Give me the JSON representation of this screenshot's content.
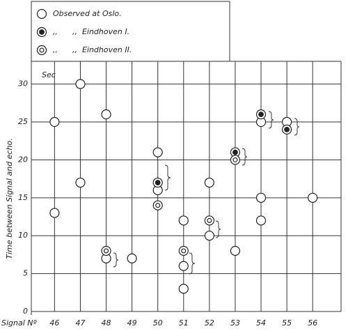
{
  "chart_data": {
    "type": "scatter",
    "y_label": "Time between Signal and echo.",
    "y_unit": "Sec",
    "x_label": "Signal Nº",
    "xlim": [
      45.1,
      57.1
    ],
    "ylim": [
      0,
      33
    ],
    "xticks": [
      46,
      47,
      48,
      49,
      50,
      51,
      52,
      53,
      54,
      55,
      56
    ],
    "yticks": [
      0,
      5,
      10,
      15,
      20,
      25,
      30
    ],
    "grid": true,
    "series": [
      {
        "name": "Observed at Oslo.",
        "marker": "open",
        "color": "#222",
        "x": [
          46,
          46,
          47,
          47,
          48,
          48,
          49,
          50,
          50,
          51,
          51,
          51,
          52,
          52,
          53,
          54,
          54,
          54,
          55,
          56
        ],
        "values": [
          25,
          13,
          30,
          17,
          26,
          7,
          7,
          21,
          16,
          12,
          6,
          3,
          17,
          10,
          8,
          25,
          15,
          12,
          25,
          15
        ]
      },
      {
        "name": ",,      ,,  Eindhoven I.",
        "marker": "filled",
        "color": "#222",
        "x": [
          50,
          53,
          54,
          55
        ],
        "values": [
          17,
          21,
          26,
          24
        ]
      },
      {
        "name": ",,      ,,  Eindhoven II.",
        "marker": "double",
        "color": "#222",
        "x": [
          48,
          50,
          51,
          52,
          53
        ],
        "values": [
          8,
          14,
          8,
          12,
          20
        ]
      }
    ]
  }
}
